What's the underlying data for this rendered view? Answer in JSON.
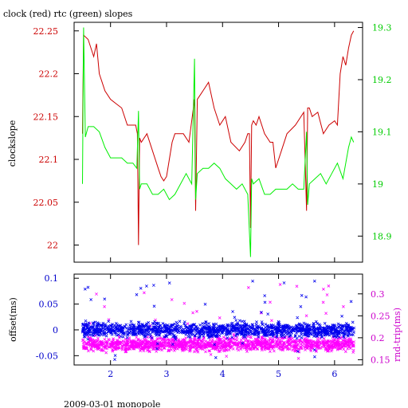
{
  "title": "clock (red) rtc (green) slopes",
  "footer": "2009-03-01 monopole",
  "colors": {
    "clock": "#cc0000",
    "rtc": "#00ee00",
    "offset": "#0000ee",
    "rndtrip": "#ff00ff",
    "axis_left_top": "#cc0000",
    "axis_right_top": "#00cc00",
    "axis_left_bottom": "#0000cc",
    "axis_right_bottom": "#cc00cc"
  },
  "chart_data": [
    {
      "type": "line",
      "name": "top",
      "xlim": [
        1.35,
        6.5
      ],
      "x_ticks": [
        2,
        3,
        4,
        5,
        6
      ],
      "ylabel": "clockslope",
      "ylim": [
        21.98,
        22.26
      ],
      "y_ticks": [
        22,
        22.05,
        22.1,
        22.15,
        22.2,
        22.25
      ],
      "y_tick_labels": [
        "22",
        "22.05",
        "22.1",
        "22.15",
        "22.2",
        "22.25"
      ],
      "y2lim": [
        18.85,
        19.31
      ],
      "y2_ticks": [
        18.9,
        19,
        19.1,
        19.2,
        19.3
      ],
      "y2_tick_labels": [
        "18.9",
        "19",
        "19.1",
        "19.2",
        "19.3"
      ],
      "series": [
        {
          "axis": "left",
          "x": [
            1.5,
            1.52,
            1.6,
            1.7,
            1.75,
            1.8,
            1.9,
            2.0,
            2.1,
            2.2,
            2.3,
            2.4,
            2.45,
            2.48,
            2.5,
            2.52,
            2.55,
            2.65,
            2.75,
            2.85,
            2.9,
            2.95,
            3.0,
            3.05,
            3.1,
            3.15,
            3.2,
            3.3,
            3.4,
            3.5,
            3.52,
            3.55,
            3.65,
            3.75,
            3.85,
            3.95,
            4.05,
            4.15,
            4.3,
            4.4,
            4.45,
            4.48,
            4.5,
            4.52,
            4.55,
            4.6,
            4.65,
            4.75,
            4.85,
            4.9,
            4.95,
            5.0,
            5.05,
            5.15,
            5.3,
            5.45,
            5.5,
            5.52,
            5.55,
            5.6,
            5.7,
            5.8,
            5.9,
            6.0,
            6.05,
            6.1,
            6.15,
            6.2,
            6.25,
            6.3,
            6.34
          ],
          "y": [
            22.13,
            22.245,
            22.24,
            22.22,
            22.235,
            22.2,
            22.18,
            22.17,
            22.165,
            22.16,
            22.14,
            22.14,
            22.14,
            22.13,
            22.0,
            22.125,
            22.12,
            22.13,
            22.11,
            22.09,
            22.08,
            22.075,
            22.08,
            22.1,
            22.12,
            22.13,
            22.13,
            22.13,
            22.12,
            22.17,
            22.04,
            22.17,
            22.18,
            22.19,
            22.16,
            22.14,
            22.15,
            22.12,
            22.11,
            22.12,
            22.13,
            22.13,
            22.02,
            22.14,
            22.145,
            22.14,
            22.15,
            22.13,
            22.12,
            22.12,
            22.09,
            22.1,
            22.11,
            22.13,
            22.14,
            22.155,
            22.04,
            22.16,
            22.16,
            22.15,
            22.155,
            22.13,
            22.14,
            22.145,
            22.14,
            22.2,
            22.22,
            22.21,
            22.23,
            22.245,
            22.25
          ]
        },
        {
          "axis": "right",
          "x": [
            1.5,
            1.52,
            1.55,
            1.6,
            1.7,
            1.8,
            1.9,
            2.0,
            2.1,
            2.2,
            2.3,
            2.4,
            2.47,
            2.5,
            2.52,
            2.55,
            2.65,
            2.75,
            2.85,
            2.95,
            3.05,
            3.15,
            3.25,
            3.35,
            3.45,
            3.5,
            3.52,
            3.55,
            3.65,
            3.75,
            3.85,
            3.95,
            4.05,
            4.15,
            4.25,
            4.35,
            4.45,
            4.5,
            4.52,
            4.55,
            4.65,
            4.75,
            4.85,
            4.95,
            5.05,
            5.15,
            5.25,
            5.35,
            5.45,
            5.5,
            5.52,
            5.55,
            5.65,
            5.75,
            5.85,
            5.95,
            6.05,
            6.15,
            6.25,
            6.3,
            6.34
          ],
          "y": [
            19.0,
            19.3,
            19.09,
            19.11,
            19.11,
            19.1,
            19.07,
            19.05,
            19.05,
            19.05,
            19.04,
            19.04,
            19.03,
            19.14,
            18.99,
            19.0,
            19.0,
            18.98,
            18.98,
            18.99,
            18.97,
            18.98,
            19.0,
            19.02,
            19.0,
            19.24,
            18.97,
            19.02,
            19.03,
            19.03,
            19.04,
            19.03,
            19.01,
            19.0,
            18.99,
            19.0,
            18.98,
            18.86,
            19.01,
            19.0,
            19.01,
            18.98,
            18.98,
            18.99,
            18.99,
            18.99,
            19.0,
            18.99,
            18.99,
            19.1,
            18.96,
            19.0,
            19.01,
            19.02,
            19.0,
            19.02,
            19.04,
            19.01,
            19.07,
            19.09,
            19.08
          ]
        }
      ]
    },
    {
      "type": "scatter",
      "name": "bottom",
      "xlim": [
        1.35,
        6.5
      ],
      "x_ticks": [
        2,
        3,
        4,
        5,
        6
      ],
      "x_tick_labels": [
        "2",
        "3",
        "4",
        "5",
        "6"
      ],
      "ylabel": "offset(ms)",
      "ylim": [
        -0.068,
        0.108
      ],
      "y_ticks": [
        -0.05,
        0,
        0.05,
        0.1
      ],
      "y_tick_labels": [
        "-0.05",
        "0",
        "0.05",
        "0.1"
      ],
      "y2label": "rnd-trip(ms)",
      "y2lim": [
        0.138,
        0.345
      ],
      "y2_ticks": [
        0.15,
        0.2,
        0.25,
        0.3
      ],
      "y2_tick_labels": [
        "0.15",
        "0.2",
        "0.25",
        "0.3"
      ],
      "series": [
        {
          "axis": "left",
          "x_range": [
            1.5,
            6.35
          ],
          "band_center": 0.0,
          "band_halfwidth": 0.02,
          "outlier_range": [
            -0.06,
            0.095
          ],
          "marker": "x"
        },
        {
          "axis": "right",
          "x_range": [
            1.5,
            6.35
          ],
          "band_center": 0.185,
          "band_halfwidth": 0.022,
          "outlier_range": [
            0.15,
            0.33
          ],
          "marker": "x"
        }
      ]
    }
  ]
}
